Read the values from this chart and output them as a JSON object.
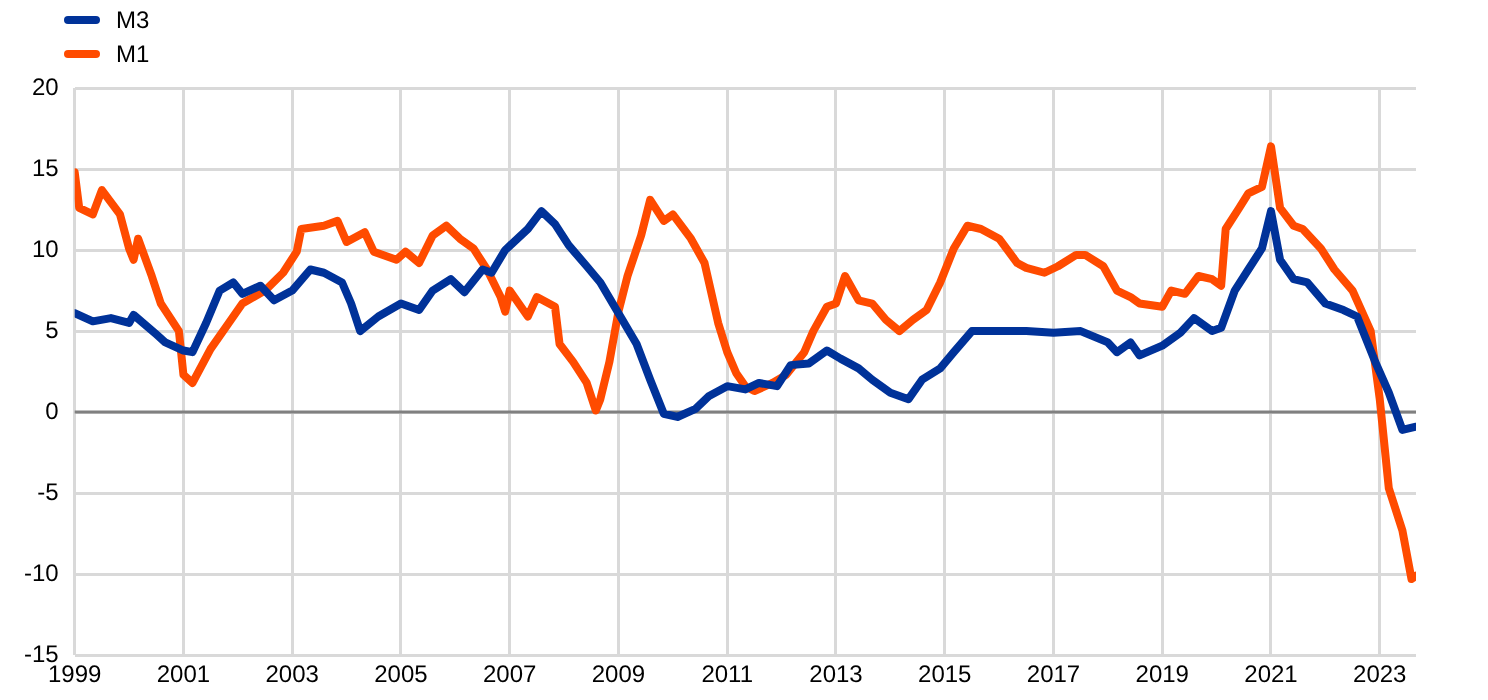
{
  "chart_data": {
    "type": "line",
    "xlim": [
      "1999-01",
      "2023-09"
    ],
    "xticks": [
      "1999",
      "2001",
      "2003",
      "2005",
      "2007",
      "2009",
      "2011",
      "2013",
      "2015",
      "2017",
      "2019",
      "2021",
      "2023"
    ],
    "ylim": [
      -15,
      20
    ],
    "yticks": [
      -15,
      -10,
      -5,
      0,
      5,
      10,
      15,
      20
    ],
    "grid": true,
    "legend": "top left",
    "marker": "none",
    "line_style": "solid",
    "ref_lines": [
      {
        "axis": "y",
        "value": 0,
        "color": "#808080"
      }
    ],
    "series": [
      {
        "name": "M3",
        "color": "#003299",
        "x": [
          "1999-01",
          "1999-05",
          "1999-09",
          "2000-01",
          "2000-02",
          "2000-07",
          "2000-09",
          "2001-01",
          "2001-03",
          "2001-06",
          "2001-09",
          "2001-12",
          "2002-02",
          "2002-06",
          "2002-09",
          "2003-01",
          "2003-05",
          "2003-08",
          "2003-12",
          "2004-02",
          "2004-04",
          "2004-08",
          "2005-01",
          "2005-05",
          "2005-08",
          "2005-12",
          "2006-03",
          "2006-07",
          "2006-09",
          "2006-12",
          "2007-05",
          "2007-08",
          "2007-11",
          "2008-02",
          "2008-06",
          "2008-09",
          "2009-01",
          "2009-05",
          "2009-08",
          "2009-11",
          "2010-02",
          "2010-06",
          "2010-09",
          "2011-01",
          "2011-05",
          "2011-08",
          "2011-12",
          "2012-03",
          "2012-07",
          "2012-11",
          "2013-02",
          "2013-06",
          "2013-09",
          "2014-01",
          "2014-05",
          "2014-08",
          "2014-12",
          "2015-03",
          "2015-07",
          "2015-11",
          "2016-07",
          "2017-01",
          "2017-07",
          "2018-01",
          "2018-03",
          "2018-06",
          "2018-08",
          "2019-01",
          "2019-05",
          "2019-08",
          "2019-12",
          "2020-02",
          "2020-05",
          "2020-08",
          "2020-11",
          "2021-01",
          "2021-03",
          "2021-06",
          "2021-09",
          "2022-01",
          "2022-05",
          "2022-08",
          "2022-12",
          "2023-03",
          "2023-06",
          "2023-09"
        ],
        "values": [
          6.1,
          5.6,
          5.8,
          5.5,
          6.0,
          4.8,
          4.3,
          3.8,
          3.7,
          5.5,
          7.5,
          8.0,
          7.3,
          7.8,
          6.9,
          7.5,
          8.8,
          8.6,
          8.0,
          6.7,
          5.0,
          5.9,
          6.7,
          6.3,
          7.5,
          8.2,
          7.4,
          8.8,
          8.6,
          10.0,
          11.3,
          12.4,
          11.6,
          10.3,
          9.0,
          8.0,
          6.1,
          4.2,
          2.0,
          -0.1,
          -0.3,
          0.2,
          1.0,
          1.6,
          1.4,
          1.8,
          1.6,
          2.9,
          3.0,
          3.8,
          3.3,
          2.7,
          2.0,
          1.2,
          0.8,
          2.0,
          2.7,
          3.7,
          5.0,
          5.0,
          5.0,
          4.9,
          5.0,
          4.3,
          3.7,
          4.3,
          3.5,
          4.1,
          4.9,
          5.8,
          5.0,
          5.2,
          7.5,
          8.8,
          10.1,
          12.4,
          9.4,
          8.2,
          8.0,
          6.7,
          6.3,
          5.9,
          3.1,
          1.2,
          -1.1,
          -0.9
        ]
      },
      {
        "name": "M1",
        "color": "#ff4b00",
        "x": [
          "1999-01",
          "1999-02",
          "1999-05",
          "1999-07",
          "1999-11",
          "2000-01",
          "2000-02",
          "2000-03",
          "2000-06",
          "2000-08",
          "2000-12",
          "2001-01",
          "2001-03",
          "2001-07",
          "2001-11",
          "2002-02",
          "2002-07",
          "2002-11",
          "2003-02",
          "2003-03",
          "2003-08",
          "2003-11",
          "2004-01",
          "2004-05",
          "2004-07",
          "2004-12",
          "2005-02",
          "2005-05",
          "2005-08",
          "2005-11",
          "2006-02",
          "2006-05",
          "2006-08",
          "2006-11",
          "2006-12",
          "2007-01",
          "2007-05",
          "2007-07",
          "2007-11",
          "2007-12",
          "2008-03",
          "2008-06",
          "2008-08",
          "2008-09",
          "2008-11",
          "2009-01",
          "2009-03",
          "2009-06",
          "2009-08",
          "2009-11",
          "2010-01",
          "2010-05",
          "2010-08",
          "2010-11",
          "2011-01",
          "2011-03",
          "2011-05",
          "2011-07",
          "2011-11",
          "2012-02",
          "2012-06",
          "2012-08",
          "2012-11",
          "2013-01",
          "2013-03",
          "2013-06",
          "2013-09",
          "2013-12",
          "2014-03",
          "2014-06",
          "2014-09",
          "2014-12",
          "2015-03",
          "2015-06",
          "2015-09",
          "2016-01",
          "2016-05",
          "2016-07",
          "2016-11",
          "2017-02",
          "2017-06",
          "2017-08",
          "2017-12",
          "2018-03",
          "2018-06",
          "2018-08",
          "2019-01",
          "2019-03",
          "2019-06",
          "2019-09",
          "2019-12",
          "2020-02",
          "2020-03",
          "2020-06",
          "2020-08",
          "2020-11",
          "2021-01",
          "2021-03",
          "2021-06",
          "2021-08",
          "2021-12",
          "2022-03",
          "2022-07",
          "2022-11",
          "2023-01",
          "2023-03",
          "2023-06",
          "2023-08",
          "2023-09"
        ],
        "values": [
          14.8,
          12.6,
          12.2,
          13.7,
          12.2,
          10.1,
          9.4,
          10.7,
          8.4,
          6.7,
          5.0,
          2.3,
          1.8,
          3.9,
          5.5,
          6.7,
          7.5,
          8.6,
          9.9,
          11.3,
          11.5,
          11.8,
          10.5,
          11.1,
          9.9,
          9.4,
          9.9,
          9.2,
          10.9,
          11.5,
          10.7,
          10.1,
          8.8,
          7.1,
          6.2,
          7.5,
          5.9,
          7.1,
          6.5,
          4.2,
          3.1,
          1.8,
          0.1,
          0.8,
          3.1,
          6.2,
          8.4,
          10.9,
          13.1,
          11.8,
          12.2,
          10.7,
          9.2,
          5.5,
          3.7,
          2.4,
          1.6,
          1.3,
          1.8,
          2.3,
          3.7,
          5.0,
          6.5,
          6.7,
          8.4,
          6.9,
          6.7,
          5.7,
          5.0,
          5.7,
          6.3,
          8.0,
          10.1,
          11.5,
          11.3,
          10.7,
          9.2,
          8.9,
          8.6,
          9.0,
          9.7,
          9.7,
          9.0,
          7.5,
          7.1,
          6.7,
          6.5,
          7.5,
          7.3,
          8.4,
          8.2,
          7.8,
          11.3,
          12.6,
          13.5,
          13.9,
          16.4,
          12.6,
          11.5,
          11.3,
          10.1,
          8.8,
          7.5,
          5.0,
          0.8,
          -4.7,
          -7.3,
          -10.3,
          -10.1
        ]
      }
    ]
  }
}
